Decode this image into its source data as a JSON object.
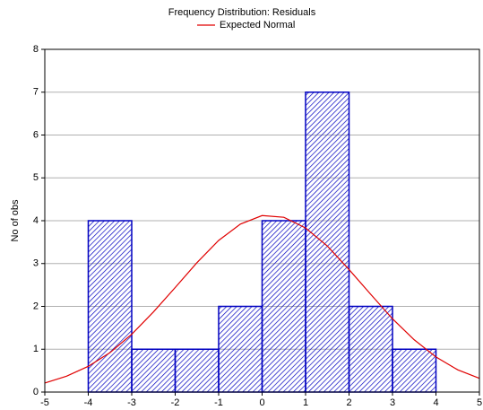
{
  "chart_data": {
    "type": "histogram",
    "title": "Frequency Distribution: Residuals",
    "y_label": "No of obs",
    "bins": [
      -4,
      -3,
      -2,
      -1,
      0,
      1,
      2,
      3,
      4
    ],
    "values": [
      4,
      1,
      1,
      2,
      4,
      7,
      2,
      1
    ],
    "color": "#0000c0",
    "series": [
      {
        "name": "Expected Normal",
        "color": "#e00000",
        "x": [
          -5,
          -4.5,
          -4,
          -3.5,
          -3,
          -2.5,
          -2,
          -1.5,
          -1,
          -0.5,
          0,
          0.5,
          1,
          1.5,
          2,
          2.5,
          3,
          3.5,
          4,
          4.5,
          5
        ],
        "values": [
          0.21,
          0.37,
          0.6,
          0.92,
          1.35,
          1.87,
          2.44,
          3.02,
          3.54,
          3.92,
          4.12,
          4.08,
          3.83,
          3.41,
          2.86,
          2.28,
          1.71,
          1.22,
          0.82,
          0.52,
          0.32
        ]
      }
    ],
    "xlim": [
      -5,
      5
    ],
    "ylim": [
      0,
      8
    ],
    "xticks": [
      -5,
      -4,
      -3,
      -2,
      -1,
      0,
      1,
      2,
      3,
      4,
      5
    ],
    "yticks": [
      0,
      1,
      2,
      3,
      4,
      5,
      6,
      7,
      8
    ],
    "grid": true
  }
}
